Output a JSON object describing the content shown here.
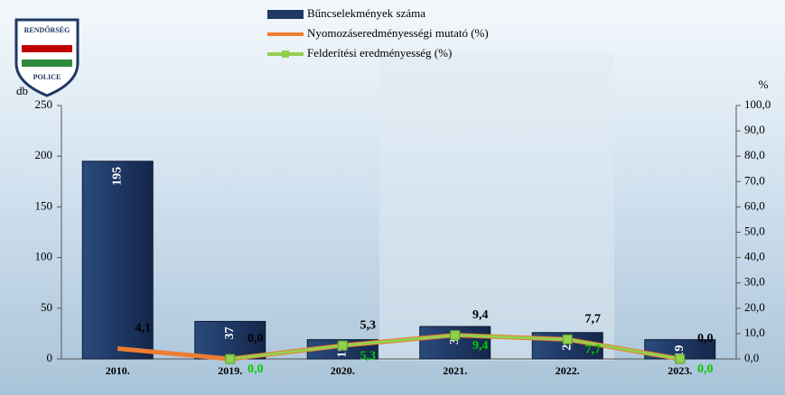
{
  "logo": {
    "top": "RENDŐRSÉG",
    "bottom": "POLICE"
  },
  "chart_data": {
    "type": "bar",
    "categories": [
      "2010.",
      "2019.",
      "2020.",
      "2021.",
      "2022.",
      "2023."
    ],
    "ylabel": "db",
    "y2label": "%",
    "ylim": [
      0,
      250
    ],
    "yticks": [
      0,
      50,
      100,
      150,
      200,
      250
    ],
    "y2lim": [
      0,
      100
    ],
    "y2ticks": [
      {
        "value": 0,
        "label": "0,0"
      },
      {
        "value": 10,
        "label": "10,0"
      },
      {
        "value": 20,
        "label": "20,0"
      },
      {
        "value": 30,
        "label": "30,0"
      },
      {
        "value": 40,
        "label": "40,0"
      },
      {
        "value": 50,
        "label": "50,0"
      },
      {
        "value": 60,
        "label": "60,0"
      },
      {
        "value": 70,
        "label": "70,0"
      },
      {
        "value": 80,
        "label": "80,0"
      },
      {
        "value": 90,
        "label": "90,0"
      },
      {
        "value": 100,
        "label": "100,0"
      }
    ],
    "series": [
      {
        "name": "Bűncselekmények száma",
        "type": "bar",
        "color": "#1f3864",
        "values": [
          195,
          37,
          19,
          32,
          26,
          19
        ]
      },
      {
        "name": "Nyomozáseredményességi mutató (%)",
        "type": "line",
        "axis": "y2",
        "color": "#ed7d31",
        "values": [
          4.1,
          0.0,
          5.3,
          9.4,
          7.7,
          0.0
        ],
        "value_labels": [
          "4,1",
          "0,0",
          "5,3",
          "9,4",
          "7,7",
          "0,0"
        ]
      },
      {
        "name": "Felderítési eredményesség (%)",
        "type": "line",
        "axis": "y2",
        "color": "#92d050",
        "label_color": "#00cc00",
        "values": [
          null,
          0.0,
          5.3,
          9.4,
          7.7,
          0.0
        ],
        "value_labels": [
          null,
          "0,0",
          "5,3",
          "9,4",
          "7,7",
          "0,0"
        ]
      }
    ]
  }
}
